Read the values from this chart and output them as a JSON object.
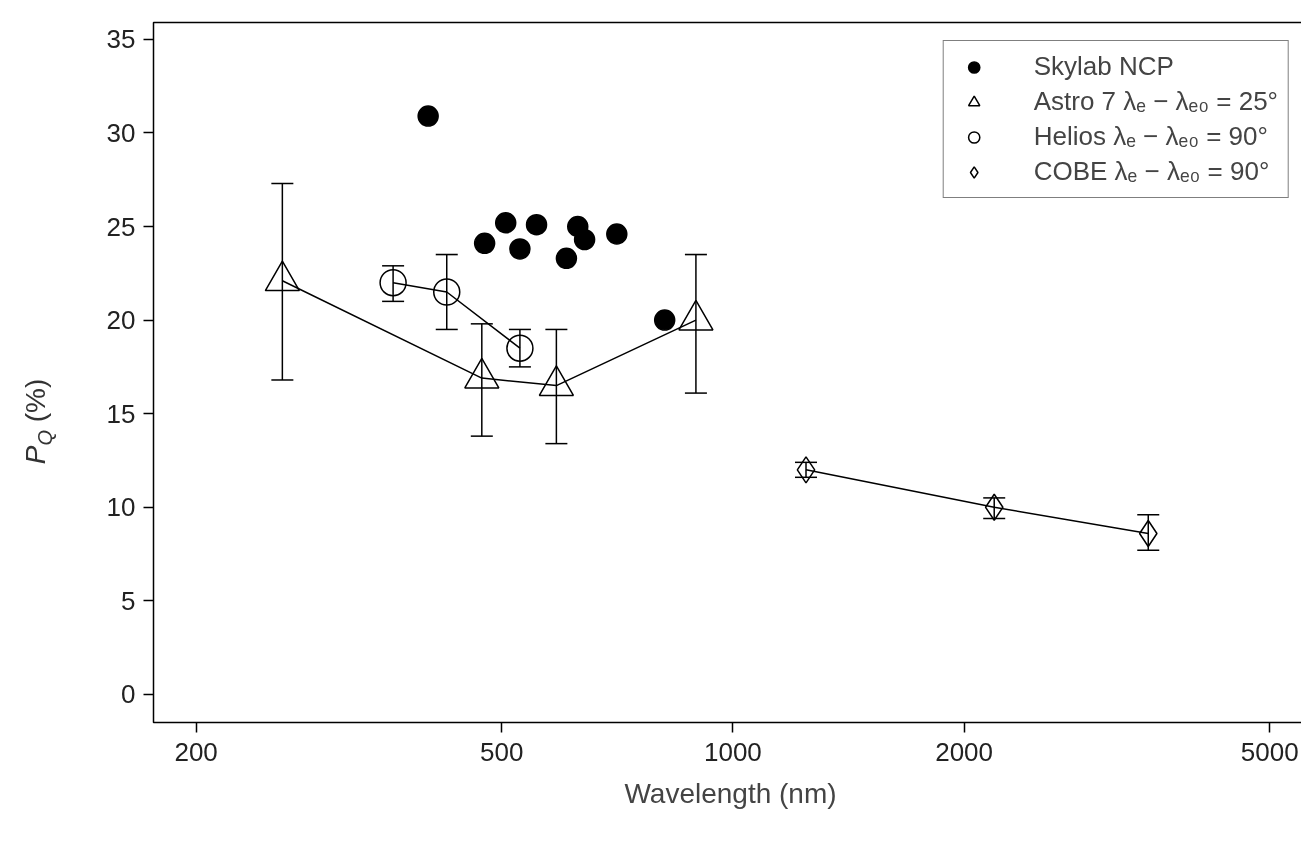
{
  "chart_data": {
    "type": "scatter",
    "xlabel": "Wavelength (nm)",
    "ylabel": "P$_{Q}$ (%)",
    "log": "x",
    "xlim": [
      176,
      5600
    ],
    "xticks": [
      200,
      500,
      1000,
      2000,
      5000
    ],
    "ylim": [
      -1.5,
      35.9
    ],
    "yticks": [
      0,
      5,
      10,
      15,
      20,
      25,
      30,
      35
    ],
    "grid": false,
    "legend": "top right",
    "series": [
      {
        "name": "Skylab NCP",
        "marker": "circle",
        "color": "#000000",
        "x": [
          401,
          475,
          506,
          528,
          555,
          607,
          628,
          641,
          706,
          815
        ],
        "values": [
          30.9,
          24.1,
          25.2,
          23.8,
          25.1,
          23.3,
          25.0,
          24.3,
          24.6,
          20.0
        ]
      },
      {
        "name": "Astro 7 λₑ − λₑ₀ = 25°",
        "type": "line",
        "marker": "triangle",
        "color": "#000000",
        "x": [
          259,
          471,
          589,
          895
        ],
        "values": [
          22.1,
          16.9,
          16.5,
          20.0
        ],
        "errors": [
          [
            16.8,
            27.3
          ],
          [
            13.8,
            19.8
          ],
          [
            13.4,
            19.5
          ],
          [
            16.1,
            23.5
          ]
        ]
      },
      {
        "name": "Helios λₑ − λₑ₀ = 90°",
        "type": "line",
        "marker": "circle",
        "color": "#000000",
        "x": [
          361,
          424,
          528
        ],
        "values": [
          22.0,
          21.5,
          18.5
        ],
        "errors": [
          [
            21.0,
            22.9
          ],
          [
            19.5,
            23.5
          ],
          [
            17.5,
            19.5
          ]
        ]
      },
      {
        "name": "COBE λₑ − λₑ₀ = 90°",
        "type": "line",
        "marker": "diamond",
        "color": "#000000",
        "x": [
          1245,
          2189,
          3474
        ],
        "values": [
          12.0,
          10.0,
          8.6
        ],
        "errors": [
          [
            11.6,
            12.4
          ],
          [
            9.4,
            10.5
          ],
          [
            7.7,
            9.6
          ]
        ]
      }
    ]
  }
}
